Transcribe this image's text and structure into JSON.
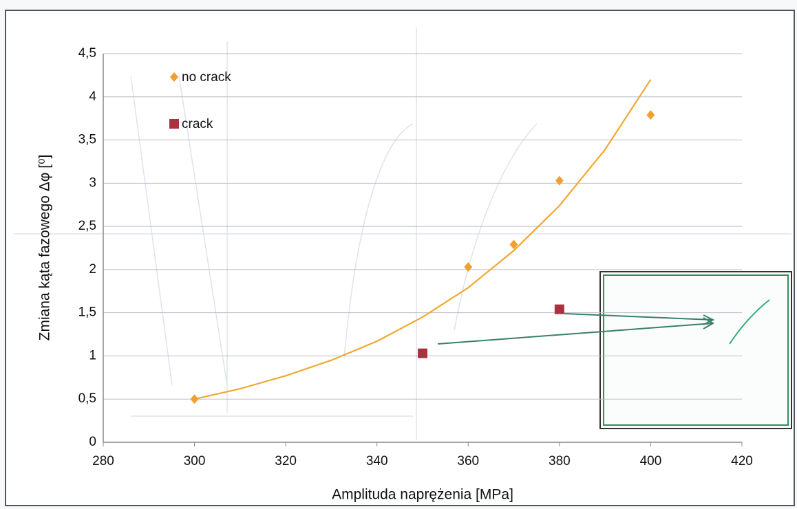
{
  "chart_data": {
    "type": "scatter",
    "x_label": "Amplituda naprężenia [MPa]",
    "y_label": "Zmiana kąta fazowego Δφ [⁰]",
    "series": [
      {
        "name": "no crack",
        "color": "#f0a030",
        "marker": "diamond",
        "x": [
          300,
          360,
          370,
          380,
          400
        ],
        "values": [
          0.5,
          2.03,
          2.29,
          3.03,
          3.79
        ]
      },
      {
        "name": "crack",
        "color": "#a8323e",
        "marker": "square",
        "x": [
          350,
          380
        ],
        "values": [
          1.03,
          1.54
        ]
      }
    ],
    "trend": {
      "color": "#f0a830",
      "x": [
        300,
        310,
        320,
        330,
        340,
        350,
        360,
        370,
        380,
        390,
        400
      ],
      "values": [
        0.5,
        0.62,
        0.77,
        0.95,
        1.17,
        1.45,
        1.79,
        2.22,
        2.74,
        3.39,
        4.2
      ]
    },
    "xlim": [
      280,
      420
    ],
    "xticks": [
      280,
      300,
      320,
      340,
      360,
      380,
      400,
      420
    ],
    "ylim": [
      0,
      4.5
    ],
    "yticks": [
      0,
      {
        "value": 0.5,
        "label": "0,5"
      },
      1,
      {
        "value": 1.5,
        "label": "1,5"
      },
      2,
      {
        "value": 2.5,
        "label": "2,5"
      },
      3,
      {
        "value": 3.5,
        "label": "3,5"
      },
      4,
      {
        "value": 4.5,
        "label": "4,5"
      }
    ],
    "grid": true,
    "legend": "top-left"
  }
}
